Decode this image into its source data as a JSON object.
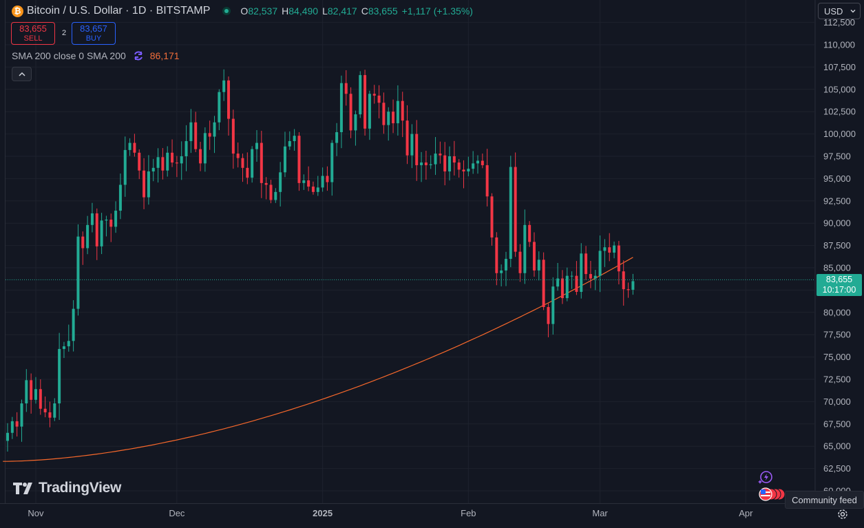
{
  "header": {
    "symbol_title": "Bitcoin / U.S. Dollar · 1D · BITSTAMP",
    "icon": "bitcoin-icon",
    "ohlc": {
      "open_label": "O",
      "open": "82,537",
      "high_label": "H",
      "high": "84,490",
      "low_label": "L",
      "low": "82,417",
      "close_label": "C",
      "close": "83,655",
      "change": "+1,117 (+1.35%)"
    }
  },
  "trade": {
    "sell_price": "83,655",
    "sell_label": "SELL",
    "spread": "2",
    "buy_price": "83,657",
    "buy_label": "BUY"
  },
  "indicator": {
    "label": "SMA 200 close 0 SMA 200",
    "value": "86,171",
    "icon": "refresh-icon"
  },
  "currency": {
    "selected": "USD"
  },
  "price_label": {
    "price": "83,655",
    "countdown": "10:17:00"
  },
  "branding": {
    "logo_text": "TradingView"
  },
  "community_feed": "Community feed",
  "colors": {
    "background": "#131722",
    "up": "#22ab94",
    "down": "#f23645",
    "sma": "#f7682b",
    "grid": "#1e222d"
  },
  "chart_data": {
    "type": "candlestick",
    "y_ticks": [
      "60,000",
      "62,500",
      "65,000",
      "67,500",
      "70,000",
      "72,500",
      "75,000",
      "77,500",
      "80,000",
      "82,500",
      "85,000",
      "87,500",
      "90,000",
      "92,500",
      "95,000",
      "97,500",
      "100,000",
      "102,500",
      "105,000",
      "107,500",
      "110,000",
      "112,500"
    ],
    "y_tick_values": [
      60000,
      62500,
      65000,
      67500,
      70000,
      72500,
      75000,
      77500,
      80000,
      82500,
      85000,
      87500,
      90000,
      92500,
      95000,
      97500,
      100000,
      102500,
      105000,
      107500,
      110000,
      112500
    ],
    "x_ticks": [
      {
        "label": "Nov",
        "bar": 6,
        "bold": false
      },
      {
        "label": "Dec",
        "bar": 36,
        "bold": false
      },
      {
        "label": "2025",
        "bar": 67,
        "bold": true
      },
      {
        "label": "Feb",
        "bar": 98,
        "bold": false
      },
      {
        "label": "Mar",
        "bar": 126,
        "bold": false
      },
      {
        "label": "Apr",
        "bar": 157,
        "bold": false
      }
    ],
    "closes": [
      66500,
      67800,
      67200,
      69800,
      72400,
      70200,
      71400,
      69200,
      68800,
      68200,
      69800,
      75900,
      76200,
      76800,
      80400,
      88500,
      87200,
      89800,
      91100,
      87400,
      90300,
      90400,
      89600,
      91400,
      94300,
      98200,
      99000,
      97900,
      95900,
      92900,
      95800,
      96200,
      97400,
      95900,
      97900,
      96800,
      96700,
      97500,
      99200,
      101300,
      98300,
      96700,
      100100,
      99700,
      101300,
      104700,
      106000,
      101700,
      97800,
      97300,
      96200,
      95100,
      98300,
      99000,
      94500,
      94300,
      92600,
      93500,
      95700,
      98600,
      99200,
      99800,
      94500,
      94800,
      94100,
      93500,
      94000,
      95300,
      94600,
      99000,
      100200,
      105700,
      104500,
      100400,
      102200,
      106600,
      100600,
      104500,
      104300,
      103500,
      101000,
      102500,
      101200,
      103700,
      101500,
      97600,
      100000,
      96500,
      96800,
      96500,
      96600,
      97800,
      97600,
      95800,
      97500,
      96800,
      96000,
      95800,
      96100,
      96700,
      97000,
      96500,
      93000,
      88400,
      84400,
      84700,
      86000,
      96300,
      86800,
      84400,
      89800,
      87900,
      84700,
      85900,
      80600,
      78700,
      82900,
      83800,
      81600,
      84100,
      84100,
      82300,
      86600,
      84300,
      83800,
      84100,
      86900,
      87300,
      86700,
      87500,
      84600,
      82600,
      82500,
      83500
    ]
  }
}
